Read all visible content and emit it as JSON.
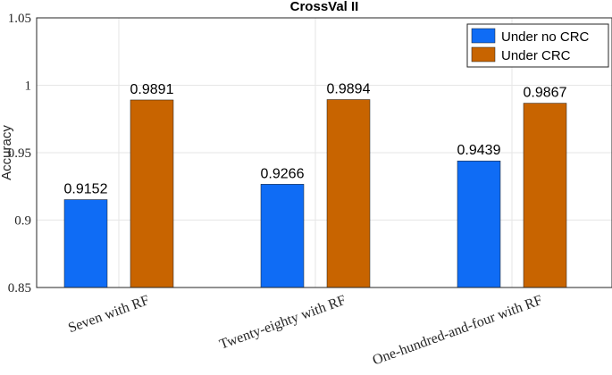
{
  "chart_data": {
    "type": "bar",
    "title": "CrossVal II",
    "xlabel": "",
    "ylabel": "Accuracy",
    "categories": [
      "Seven with RF",
      "Twenty-eighty with RF",
      "One-hundred-and-four with RF"
    ],
    "series": [
      {
        "name": "Under no CRC",
        "color": "#0f6cf5",
        "values": [
          0.9152,
          0.9266,
          0.9439
        ],
        "labels": [
          "0.9152",
          "0.9266",
          "0.9439"
        ]
      },
      {
        "name": "Under CRC",
        "color": "#c86400",
        "values": [
          0.9891,
          0.9894,
          0.9867
        ],
        "labels": [
          "0.9891",
          "0.9894",
          "0.9867"
        ]
      }
    ],
    "ylim": [
      0.85,
      1.05
    ],
    "yticks": [
      0.85,
      0.9,
      0.95,
      1.0,
      1.05
    ],
    "ytick_labels": [
      "0.85",
      "0.9",
      "0.95",
      "1",
      "1.05"
    ],
    "grid": true,
    "legend_position": "top-right"
  }
}
